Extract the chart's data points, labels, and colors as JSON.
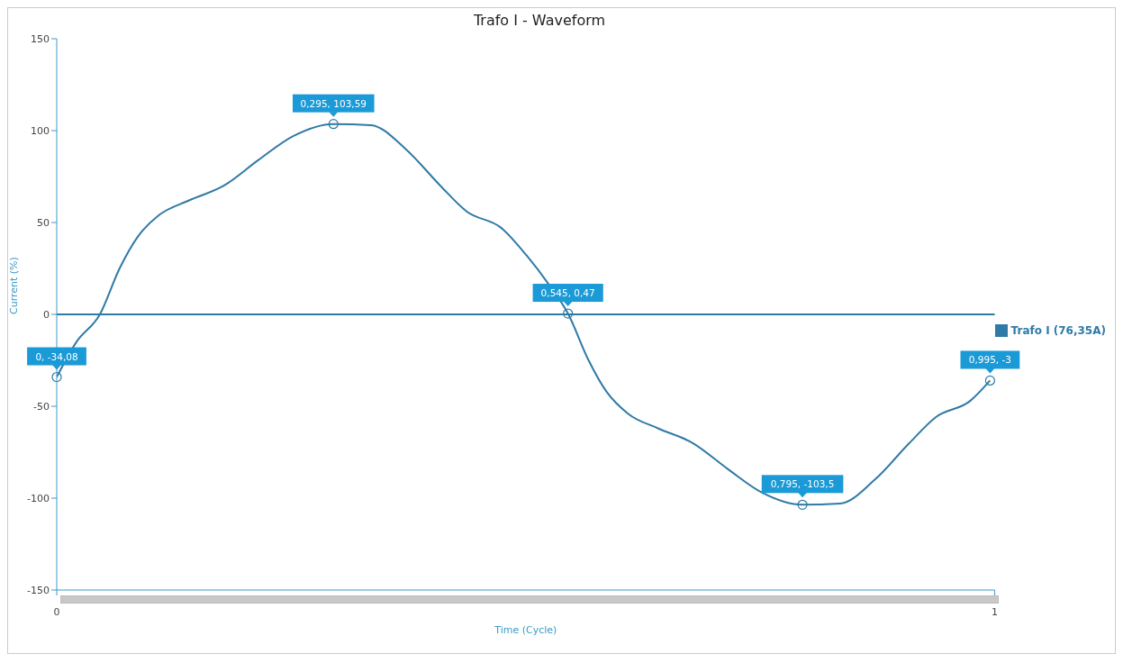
{
  "chart_data": {
    "type": "line",
    "title": "Trafo I - Waveform",
    "xlabel": "Time (Cycle)",
    "ylabel": "Current (%)",
    "x": [
      0,
      0.021,
      0.046,
      0.067,
      0.086,
      0.109,
      0.141,
      0.178,
      0.215,
      0.252,
      0.295,
      0.335,
      0.372,
      0.409,
      0.437,
      0.474,
      0.501,
      0.525,
      0.545,
      0.567,
      0.586,
      0.609,
      0.641,
      0.678,
      0.715,
      0.752,
      0.795,
      0.835,
      0.872,
      0.909,
      0.937,
      0.974,
      0.995
    ],
    "series": [
      {
        "name": "Trafo I (76,35A)",
        "color": "#2f7aa6",
        "values": [
          -34.08,
          -15,
          0,
          25,
          42,
          54,
          62,
          70,
          84,
          97,
          103.59,
          103,
          90,
          70,
          56,
          47,
          32,
          16,
          0.47,
          -25,
          -42,
          -54,
          -62,
          -70,
          -84,
          -97,
          -103.59,
          -103,
          -90,
          -70,
          -56,
          -47,
          -36
        ]
      }
    ],
    "xlim": [
      0,
      1
    ],
    "xticks": [
      0,
      1
    ],
    "ylim": [
      -150,
      150
    ],
    "yticks": [
      -150,
      -100,
      -50,
      0,
      50,
      100,
      150
    ],
    "ref_lines": [
      {
        "axis": "y",
        "value": 0,
        "color": "#2f7aa6"
      }
    ],
    "annotations": [
      {
        "text": "0, -34,08",
        "x": 0,
        "y": -34.08
      },
      {
        "text": "0,295, 103,59",
        "x": 0.295,
        "y": 103.59
      },
      {
        "text": "0,545, 0,47",
        "x": 0.545,
        "y": 0.47
      },
      {
        "text": "0,795, -103,5",
        "x": 0.795,
        "y": -103.59
      },
      {
        "text": "0,995, -3",
        "x": 0.995,
        "y": -36
      }
    ],
    "grid": false,
    "legend": "right",
    "marker": "none",
    "line_style": "solid"
  }
}
